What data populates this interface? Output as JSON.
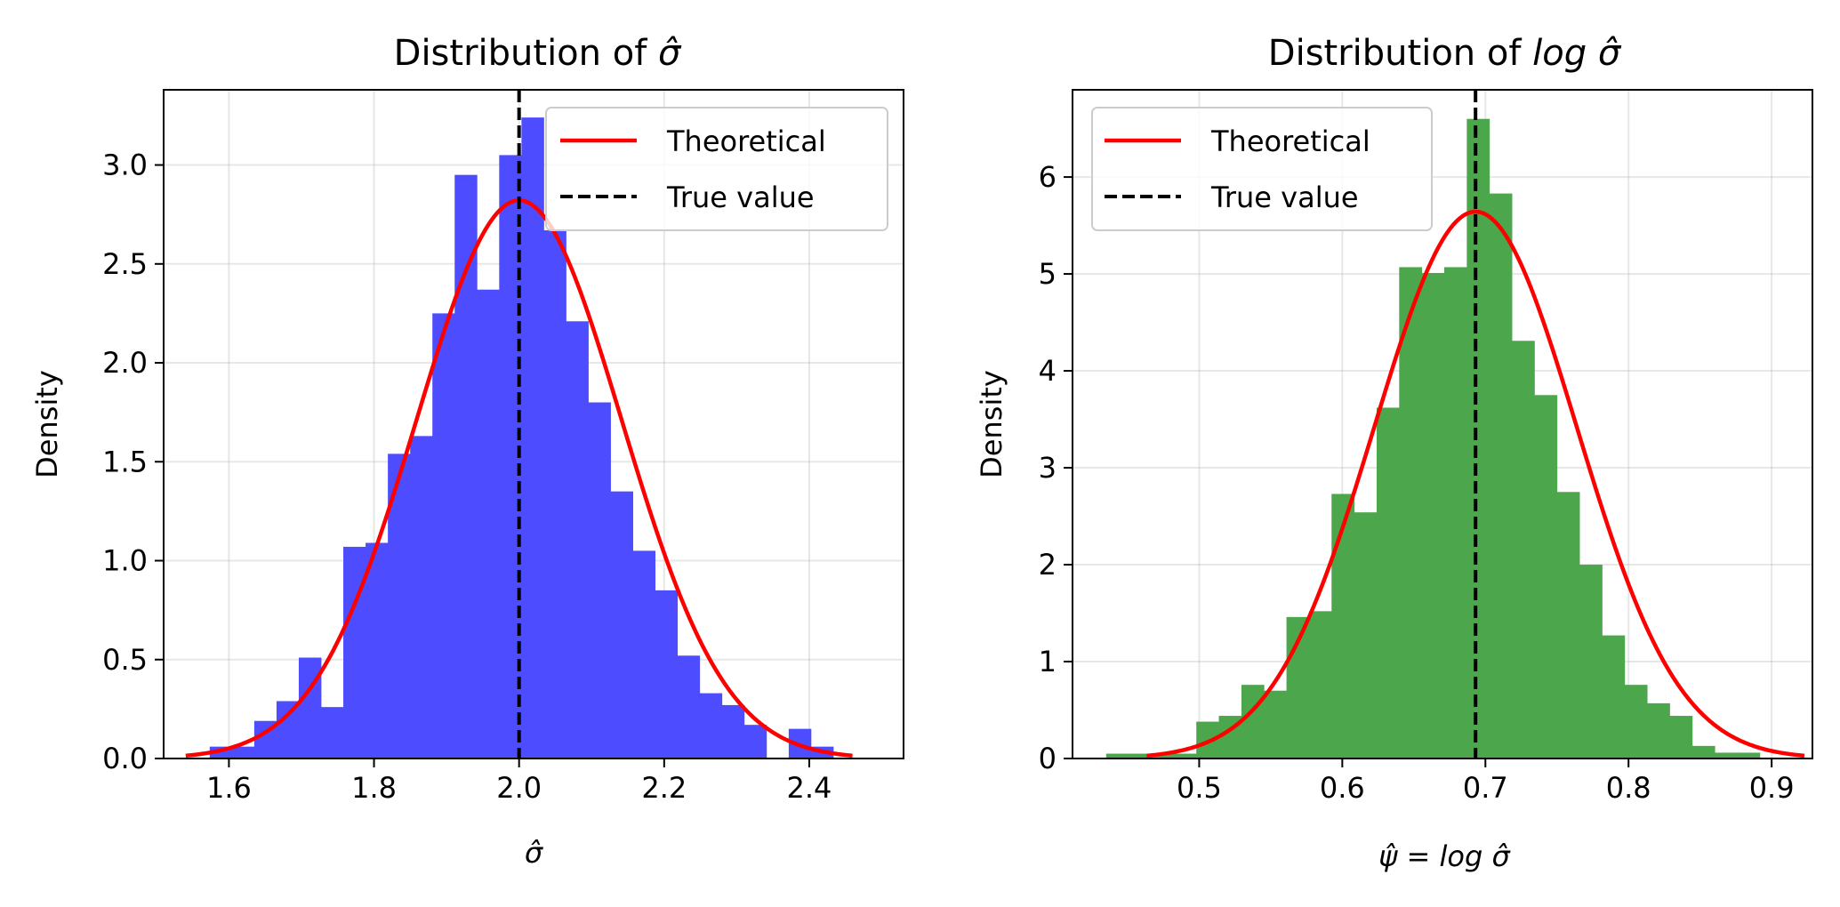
{
  "chart_data": [
    {
      "type": "bar",
      "title_prefix": "Distribution of ",
      "title_math": "σ̂",
      "xlabel": "σ̂",
      "ylabel": "Density",
      "xlim": [
        1.51,
        2.53
      ],
      "ylim": [
        0,
        3.38
      ],
      "xticks": [
        1.6,
        1.8,
        2.0,
        2.2,
        2.4
      ],
      "xtick_labels": [
        "1.6",
        "1.8",
        "2.0",
        "2.2",
        "2.4"
      ],
      "yticks": [
        0,
        0.5,
        1.0,
        1.5,
        2.0,
        2.5,
        3.0
      ],
      "ytick_labels": [
        "0.0",
        "0.5",
        "1.0",
        "1.5",
        "2.0",
        "2.5",
        "3.0"
      ],
      "grid": true,
      "legend_position": "upper-right",
      "bar_color": "#4d4dff",
      "bins": {
        "start": 1.5735,
        "width": 0.0307
      },
      "values": [
        0.06,
        0.06,
        0.19,
        0.29,
        0.51,
        0.26,
        1.07,
        1.09,
        1.54,
        1.63,
        2.25,
        2.95,
        2.37,
        3.05,
        3.24,
        2.67,
        2.21,
        1.8,
        1.35,
        1.05,
        0.85,
        0.52,
        0.33,
        0.27,
        0.17,
        0.0,
        0.15,
        0.06
      ],
      "theory": {
        "mean": 2.0,
        "sd": 0.1414,
        "color": "#ff0000"
      },
      "true_value": 2.0,
      "legend": [
        "Theoretical",
        "True value"
      ]
    },
    {
      "type": "bar",
      "title_prefix": "Distribution of ",
      "title_math": "log σ̂",
      "xlabel": "ψ̂ = log σ̂",
      "ylabel": "Density",
      "xlim": [
        0.4115,
        0.9285
      ],
      "ylim": [
        0,
        6.9
      ],
      "xticks": [
        0.5,
        0.6,
        0.7,
        0.8,
        0.9
      ],
      "xtick_labels": [
        "0.5",
        "0.6",
        "0.7",
        "0.8",
        "0.9"
      ],
      "yticks": [
        0,
        1,
        2,
        3,
        4,
        5,
        6
      ],
      "ytick_labels": [
        "0",
        "1",
        "2",
        "3",
        "4",
        "5",
        "6"
      ],
      "grid": true,
      "legend_position": "upper-left",
      "bar_color": "#4ca64c",
      "bins": {
        "start": 0.435,
        "width": 0.01575
      },
      "values": [
        0.05,
        0.05,
        0.05,
        0.05,
        0.38,
        0.44,
        0.76,
        0.7,
        1.46,
        1.52,
        2.73,
        2.54,
        3.62,
        5.07,
        5.01,
        5.07,
        6.6,
        5.83,
        4.31,
        3.75,
        2.75,
        2.0,
        1.27,
        0.76,
        0.57,
        0.44,
        0.13,
        0.06,
        0.06
      ],
      "theory": {
        "mean": 0.6931,
        "sd": 0.0707,
        "color": "#ff0000"
      },
      "true_value": 0.6931,
      "legend": [
        "Theoretical",
        "True value"
      ]
    }
  ]
}
